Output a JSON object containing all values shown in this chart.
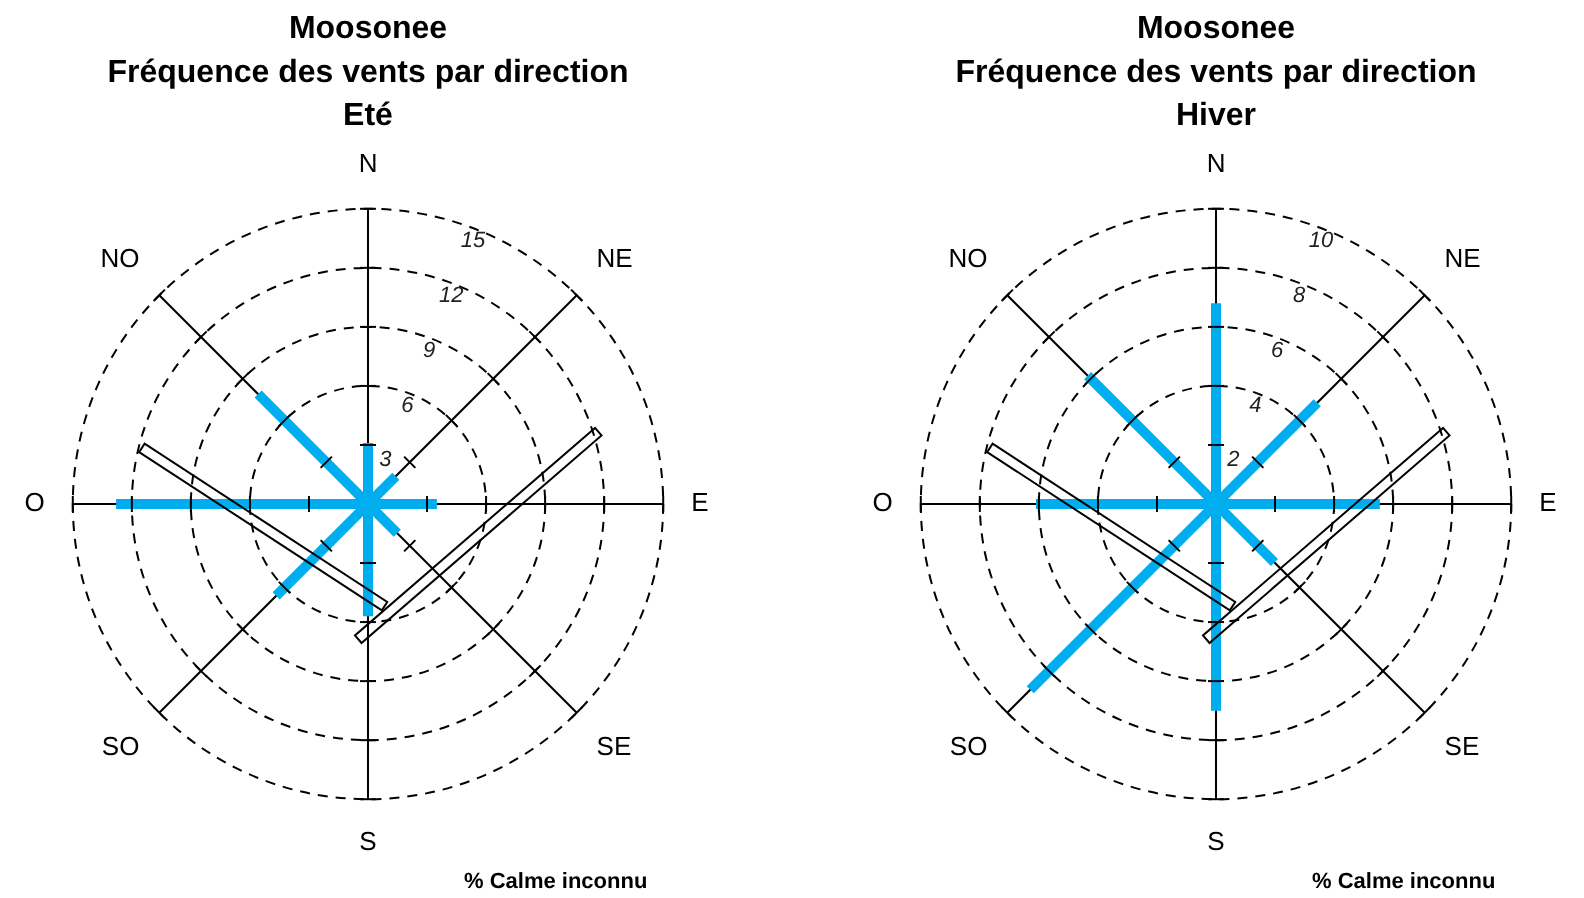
{
  "chart_data": [
    {
      "type": "radar",
      "title": "Moosonee\nFréquence des vents par direction\nEté",
      "categories": [
        "N",
        "NE",
        "E",
        "SE",
        "S",
        "SO",
        "O",
        "NO"
      ],
      "series": [
        {
          "color": "#00aeef",
          "values": [
            3.1,
            2.0,
            3.5,
            2.1,
            5.7,
            6.6,
            12.8,
            7.9
          ]
        }
      ],
      "ylim": [
        0,
        15
      ],
      "yticks": [
        3,
        6,
        9,
        12,
        15
      ],
      "grid": true,
      "legend": false,
      "marker": "none",
      "annotations": [
        "% Calme inconnu"
      ]
    },
    {
      "type": "radar",
      "title": "Moosonee\nFréquence des vents par direction\nHiver",
      "categories": [
        "N",
        "NE",
        "E",
        "SE",
        "S",
        "SO",
        "O",
        "NO"
      ],
      "series": [
        {
          "color": "#00aeef",
          "values": [
            6.8,
            4.85,
            5.55,
            2.8,
            7.0,
            8.9,
            6.1,
            6.15
          ]
        }
      ],
      "ylim": [
        0,
        10
      ],
      "yticks": [
        2,
        4,
        6,
        8,
        10
      ],
      "grid": true,
      "legend": false,
      "marker": "none",
      "annotations": [
        "% Calme inconnu"
      ]
    }
  ]
}
